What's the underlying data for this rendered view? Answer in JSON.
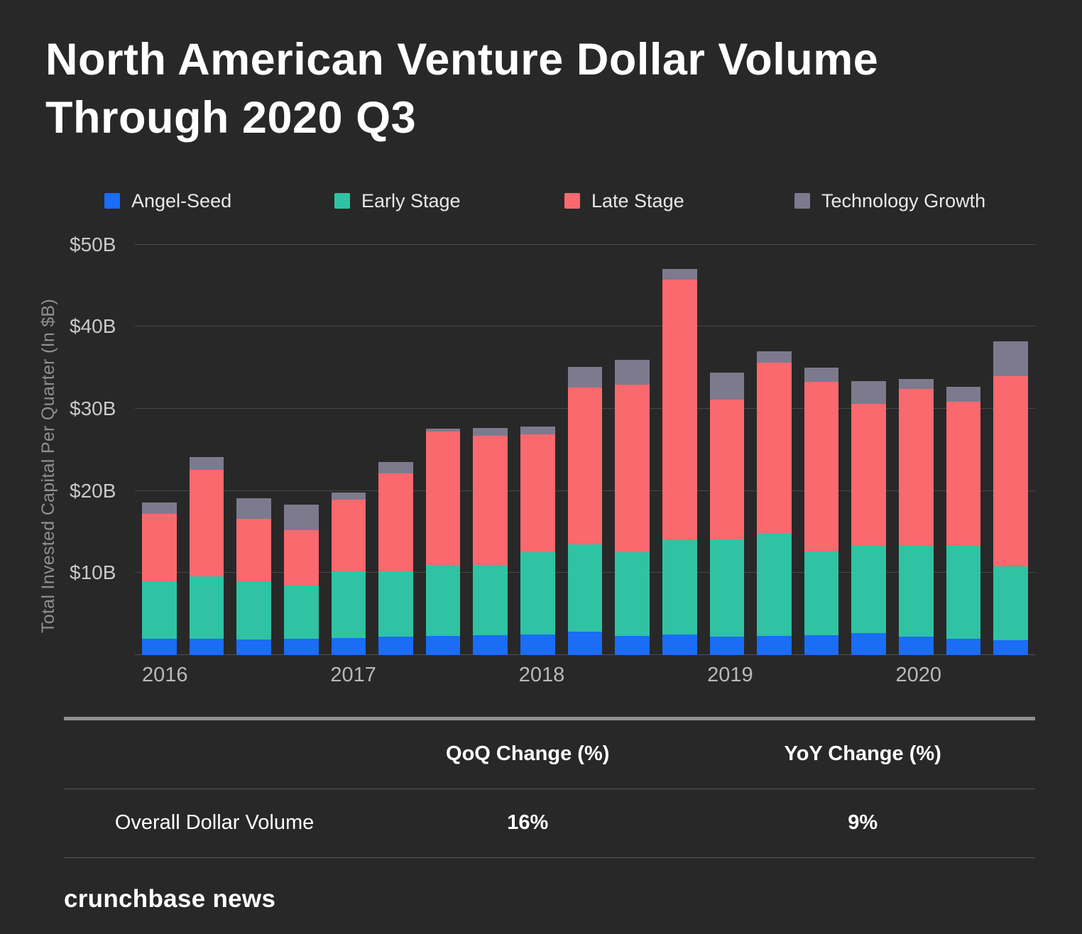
{
  "title": {
    "lines": [
      "North American Venture Dollar Volume",
      "Through 2020 Q3"
    ]
  },
  "legend": [
    {
      "label": "Angel-Seed",
      "color": "#1a6df4"
    },
    {
      "label": "Early Stage",
      "color": "#2fc3a3"
    },
    {
      "label": "Late Stage",
      "color": "#fa696e"
    },
    {
      "label": "Technology Growth",
      "color": "#7d7a8e"
    }
  ],
  "chart_data": {
    "type": "bar",
    "stacked": true,
    "title": "North American Venture Dollar Volume Through 2020 Q3",
    "ylabel": "Total Invested Capital Per Quarter (In $B)",
    "ylim": [
      0,
      50
    ],
    "grid": "horizontal",
    "legend_position": "top",
    "yticks": [
      {
        "label": "$10B",
        "value": 10
      },
      {
        "label": "$20B",
        "value": 20
      },
      {
        "label": "$30B",
        "value": 30
      },
      {
        "label": "$40B",
        "value": 40
      },
      {
        "label": "$50B",
        "value": 50
      }
    ],
    "categories": [
      "2016 Q1",
      "2016 Q2",
      "2016 Q3",
      "2016 Q4",
      "2017 Q1",
      "2017 Q2",
      "2017 Q3",
      "2017 Q4",
      "2018 Q1",
      "2018 Q2",
      "2018 Q3",
      "2018 Q4",
      "2019 Q1",
      "2019 Q2",
      "2019 Q3",
      "2019 Q4",
      "2020 Q1",
      "2020 Q2",
      "2020 Q3"
    ],
    "x_axis_labels": [
      "2016",
      "",
      "",
      "",
      "2017",
      "",
      "",
      "",
      "2018",
      "",
      "",
      "",
      "2019",
      "",
      "",
      "",
      "2020",
      "",
      ""
    ],
    "series": [
      {
        "name": "Angel-Seed",
        "color": "#1a6df4",
        "values": [
          2.0,
          2.0,
          1.9,
          2.0,
          2.1,
          2.2,
          2.3,
          2.4,
          2.5,
          2.8,
          2.3,
          2.5,
          2.2,
          2.3,
          2.4,
          2.7,
          2.2,
          2.0,
          1.8
        ]
      },
      {
        "name": "Early Stage",
        "color": "#2fc3a3",
        "values": [
          7.0,
          7.6,
          7.1,
          6.5,
          8.1,
          8.0,
          8.7,
          8.6,
          10.0,
          10.7,
          10.2,
          11.5,
          11.9,
          12.6,
          10.2,
          10.6,
          11.1,
          11.3,
          9.0
        ]
      },
      {
        "name": "Late Stage",
        "color": "#fa696e",
        "values": [
          8.2,
          13.0,
          7.6,
          6.7,
          8.7,
          11.9,
          16.2,
          15.7,
          14.4,
          19.1,
          20.4,
          31.7,
          17.0,
          20.7,
          20.7,
          17.3,
          19.1,
          17.6,
          23.2
        ]
      },
      {
        "name": "Technology Growth",
        "color": "#7d7a8e",
        "values": [
          1.4,
          1.5,
          2.5,
          3.1,
          0.9,
          1.4,
          0.4,
          1.0,
          0.9,
          2.5,
          3.1,
          1.3,
          3.3,
          1.4,
          1.7,
          2.8,
          1.2,
          1.8,
          4.2
        ]
      }
    ]
  },
  "table": {
    "col_headers": [
      "QoQ Change (%)",
      "YoY Change (%)"
    ],
    "rows": [
      {
        "label": "Overall Dollar Volume",
        "values": [
          "16%",
          "9%"
        ]
      }
    ]
  },
  "footer": {
    "brand": "crunchbase news"
  }
}
